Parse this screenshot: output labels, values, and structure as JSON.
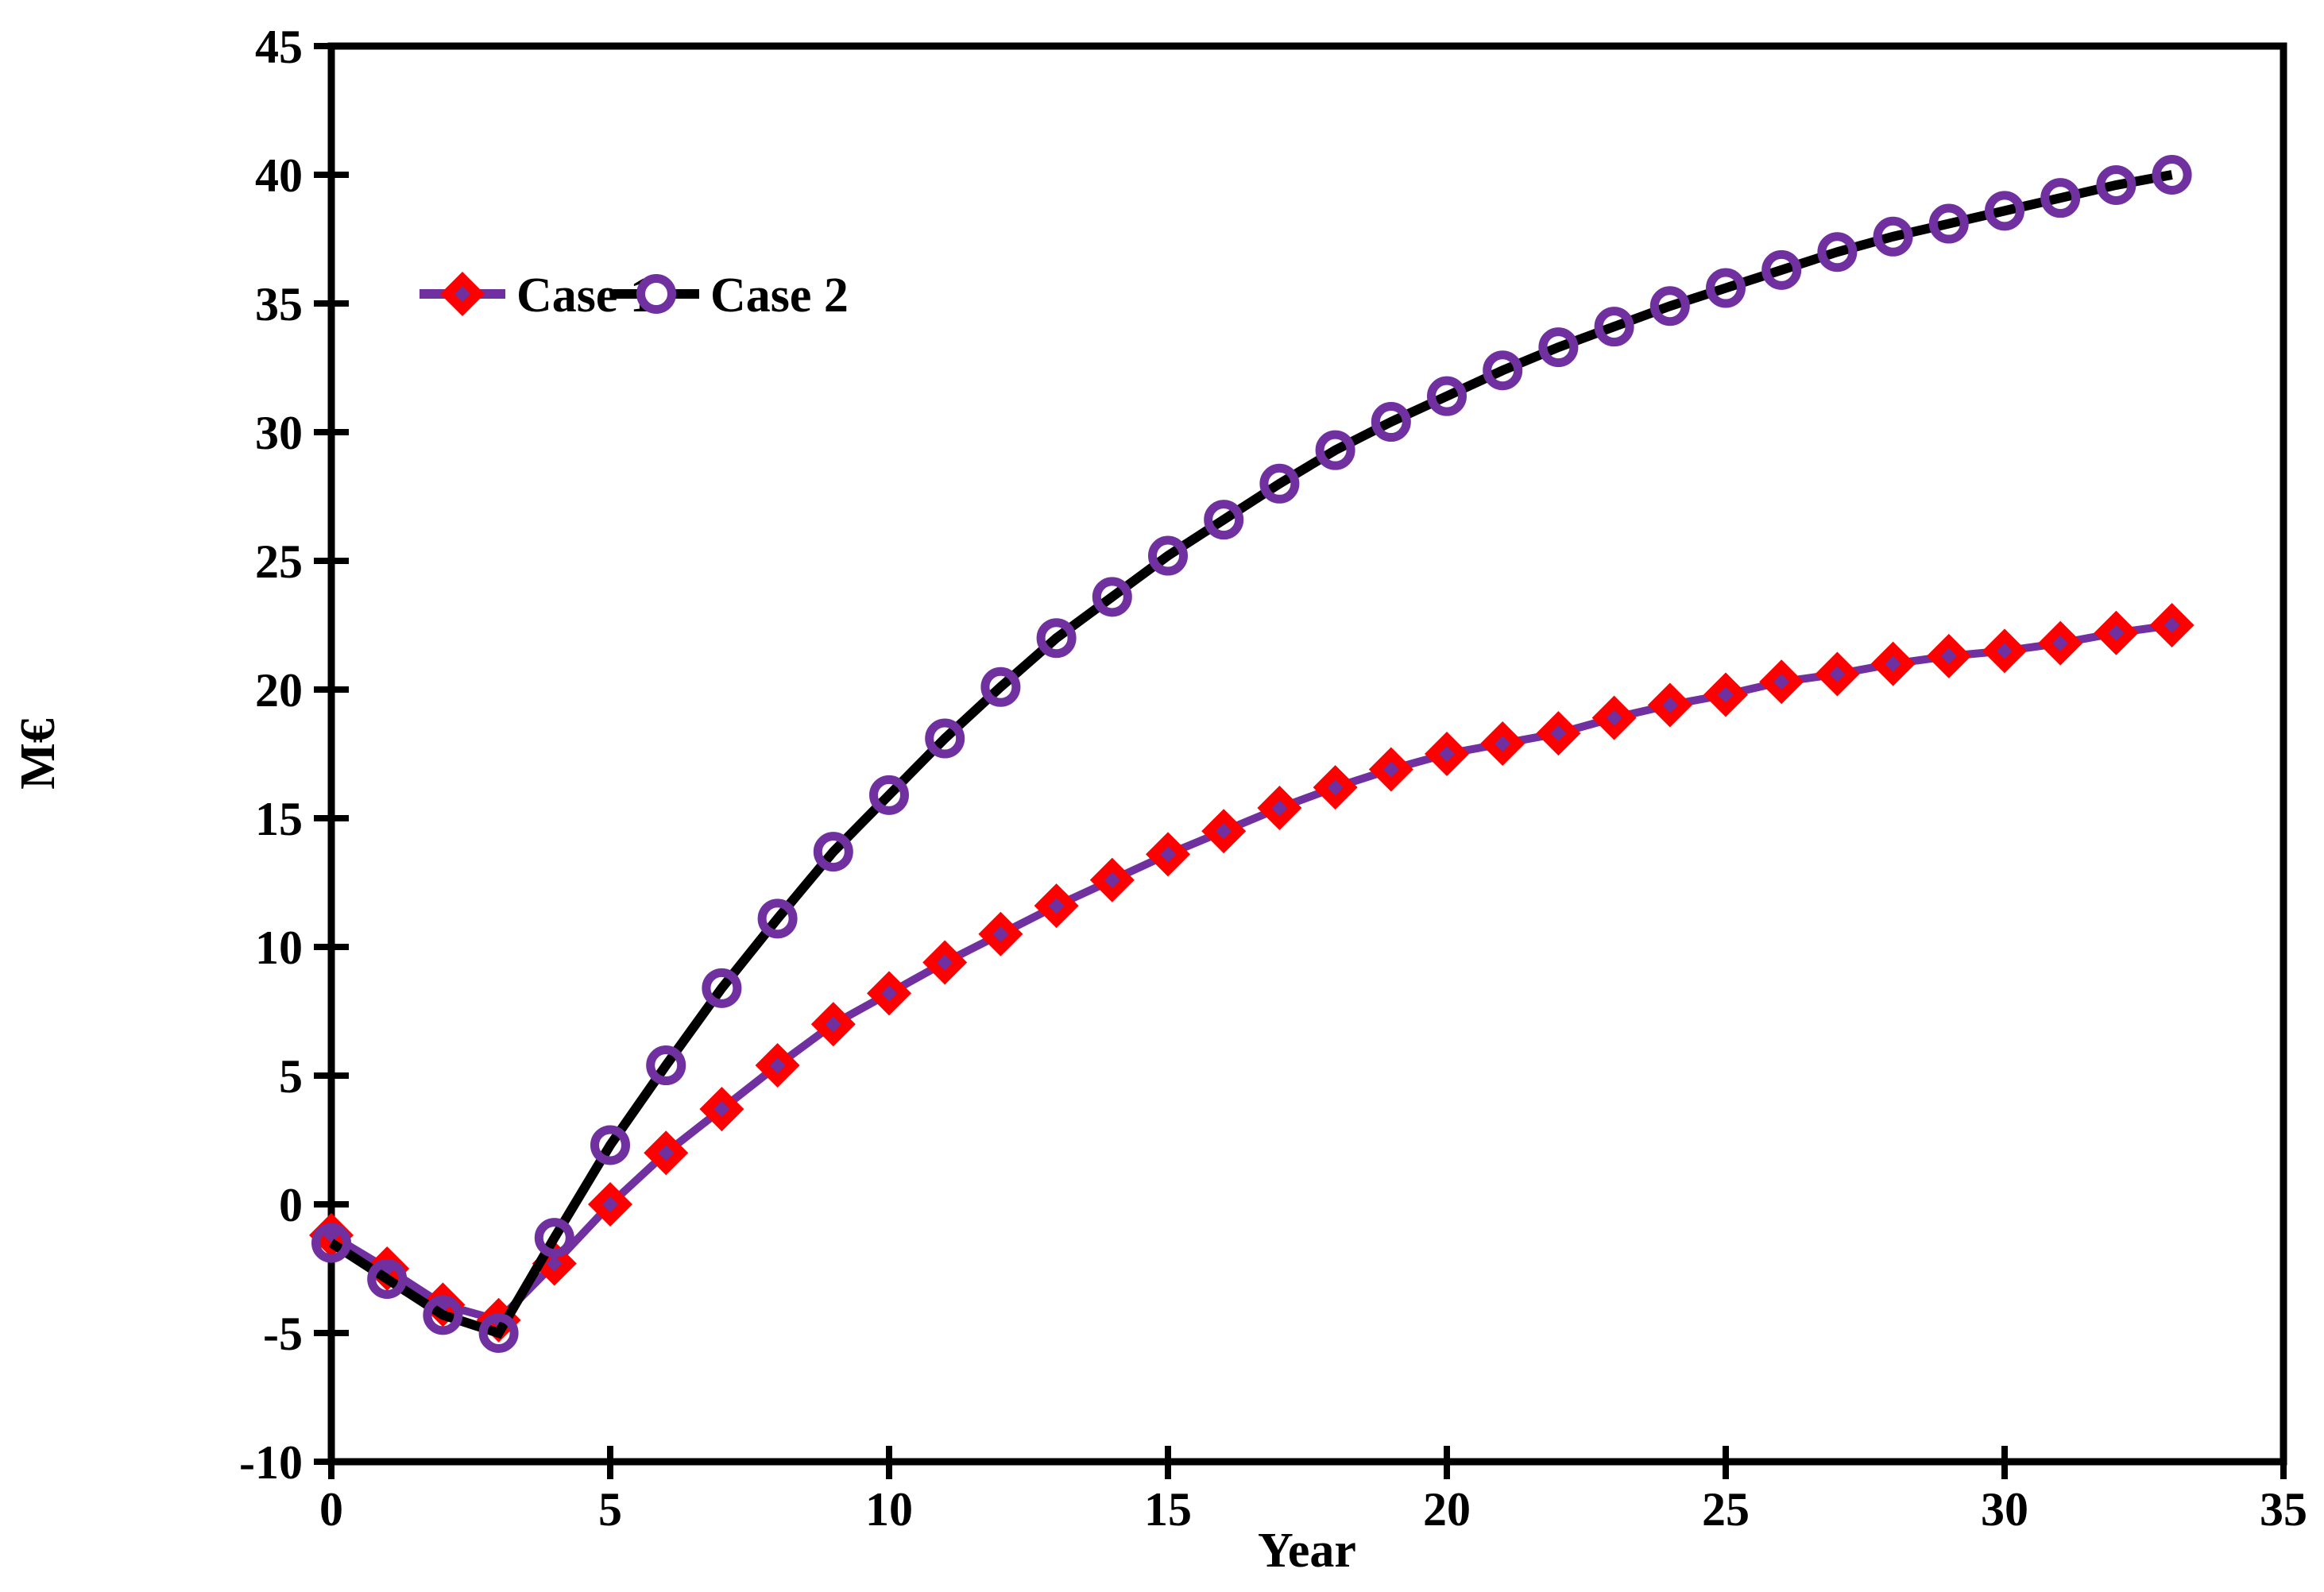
{
  "chart_data": {
    "type": "line",
    "title": "",
    "xlabel": "Year",
    "ylabel": "M€",
    "xlim": [
      0,
      35
    ],
    "ylim": [
      -10,
      45
    ],
    "x_ticks": [
      0,
      5,
      10,
      15,
      20,
      25,
      30,
      35
    ],
    "y_ticks": [
      45,
      40,
      35,
      30,
      25,
      20,
      15,
      10,
      5,
      0,
      -5,
      -10
    ],
    "grid": false,
    "legend_position": "inside-upper-left",
    "x": [
      0,
      1,
      2,
      3,
      4,
      5,
      6,
      7,
      8,
      9,
      10,
      11,
      12,
      13,
      14,
      15,
      16,
      17,
      18,
      19,
      20,
      21,
      22,
      23,
      24,
      25,
      26,
      27,
      28,
      29,
      30,
      31,
      32,
      33
    ],
    "series": [
      {
        "name": "Case 1",
        "line_color": "#7030A0",
        "marker": "diamond",
        "marker_color": "#FF0000",
        "values": [
          -1.2,
          -2.5,
          -3.9,
          -4.5,
          -2.3,
          0.0,
          2.0,
          3.7,
          5.4,
          7.0,
          8.2,
          9.4,
          10.5,
          11.6,
          12.6,
          13.6,
          14.5,
          15.4,
          16.2,
          16.9,
          17.5,
          17.9,
          18.3,
          18.9,
          19.4,
          19.8,
          20.3,
          20.6,
          21.0,
          21.3,
          21.5,
          21.8,
          22.2,
          22.5
        ]
      },
      {
        "name": "Case 2",
        "line_color": "#000000",
        "marker": "circle",
        "marker_color": "#7030A0",
        "values": [
          -1.5,
          -2.9,
          -4.3,
          -5.0,
          -1.3,
          2.3,
          5.4,
          8.4,
          11.1,
          13.7,
          15.9,
          18.1,
          20.1,
          22.0,
          23.6,
          25.2,
          26.6,
          28.0,
          29.3,
          30.4,
          31.4,
          32.4,
          33.3,
          34.1,
          34.9,
          35.6,
          36.3,
          37.0,
          37.6,
          38.1,
          38.6,
          39.1,
          39.6,
          40.0
        ]
      }
    ]
  },
  "colors": {
    "background": "#FFFFFF",
    "axis": "#000000",
    "case1_line": "#7030A0",
    "case1_marker": "#FF0000",
    "case2_line": "#000000",
    "case2_marker": "#7030A0"
  }
}
